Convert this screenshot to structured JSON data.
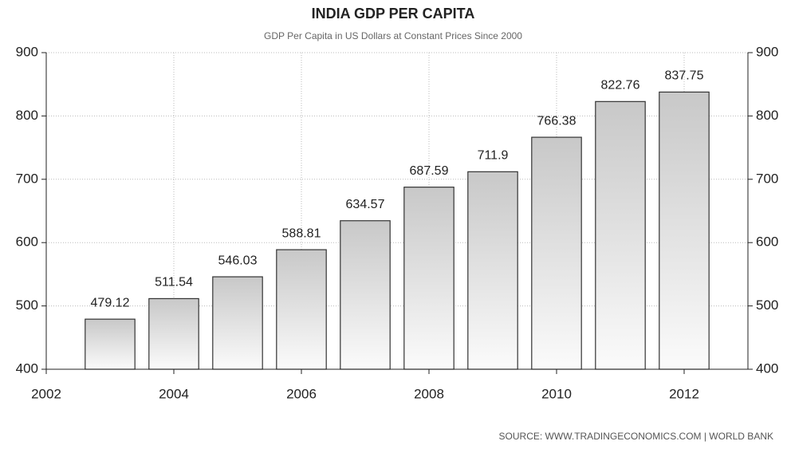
{
  "chart_data": {
    "type": "bar",
    "title": "INDIA GDP PER CAPITA",
    "subtitle": "GDP Per Capita in US Dollars at Constant Prices Since 2000",
    "source": "SOURCE:  WWW.TRADINGECONOMICS.COM  |  WORLD BANK",
    "x": [
      2003,
      2004,
      2005,
      2006,
      2007,
      2008,
      2009,
      2010,
      2011,
      2012
    ],
    "values": [
      479.12,
      511.54,
      546.03,
      588.81,
      634.57,
      687.59,
      711.9,
      766.38,
      822.76,
      837.75
    ],
    "color": "#c8c8c8",
    "xlim": [
      2002,
      2013
    ],
    "xticks": [
      2002,
      2004,
      2006,
      2008,
      2010,
      2012
    ],
    "ylim": [
      400,
      900
    ],
    "yticks": [
      400,
      500,
      600,
      700,
      800,
      900
    ],
    "y2lim": [
      400,
      900
    ],
    "y2ticks": [
      400,
      500,
      600,
      700,
      800,
      900
    ],
    "grid": true
  }
}
